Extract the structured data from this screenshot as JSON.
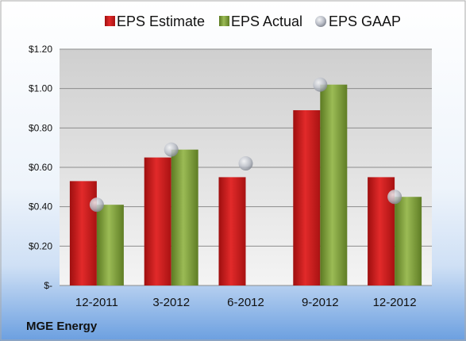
{
  "company": "MGE Energy",
  "chart_data": {
    "type": "bar",
    "categories": [
      "12-2011",
      "3-2012",
      "6-2012",
      "9-2012",
      "12-2012"
    ],
    "series": [
      {
        "name": "EPS Estimate",
        "kind": "bar",
        "color": "#d81e1e",
        "values": [
          0.53,
          0.65,
          0.55,
          0.89,
          0.55
        ]
      },
      {
        "name": "EPS Actual",
        "kind": "bar",
        "color": "#7a9a3a",
        "values": [
          0.41,
          0.69,
          null,
          1.02,
          0.45
        ]
      },
      {
        "name": "EPS GAAP",
        "kind": "marker",
        "color": "#b8bcc4",
        "values": [
          0.41,
          0.69,
          0.62,
          1.02,
          0.45
        ]
      }
    ],
    "ylim": [
      0,
      1.2
    ],
    "yticks": [
      0,
      0.2,
      0.4,
      0.6,
      0.8,
      1.0,
      1.2
    ],
    "ytick_labels": [
      "$-",
      "$0.20",
      "$0.40",
      "$0.60",
      "$0.80",
      "$1.00",
      "$1.20"
    ],
    "grid": true,
    "legend_position": "top"
  }
}
